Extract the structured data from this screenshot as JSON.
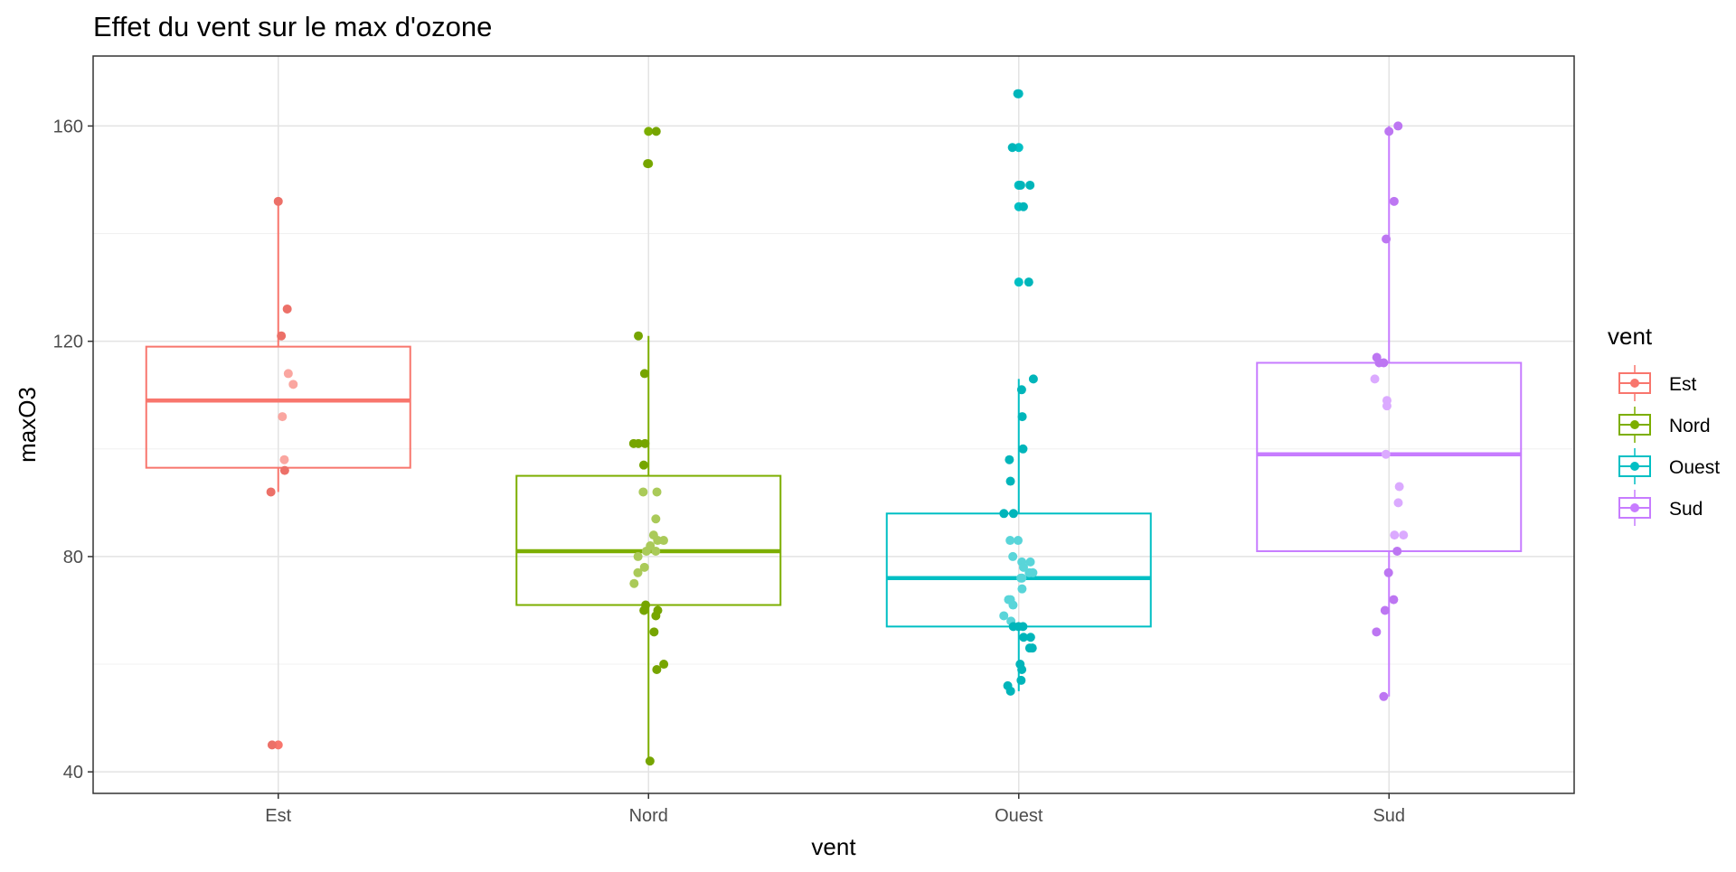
{
  "chart_data": {
    "type": "boxplot",
    "title": "Effet du vent sur le max d'ozone",
    "xlabel": "vent",
    "ylabel": "maxO3",
    "ylim": [
      36,
      173
    ],
    "yticks": [
      40,
      80,
      120,
      160
    ],
    "yminor": [
      60,
      100,
      140
    ],
    "categories": [
      "Est",
      "Nord",
      "Ouest",
      "Sud"
    ],
    "grid": true,
    "legend": {
      "title": "vent",
      "position": "right",
      "entries": [
        "Est",
        "Nord",
        "Ouest",
        "Sud"
      ]
    },
    "series": [
      {
        "name": "Est",
        "color": "#F8766D",
        "whisker_low": 92,
        "q1": 96.5,
        "median": 109,
        "q3": 119,
        "whisker_high": 146,
        "outliers": [
          45
        ],
        "points": [
          146,
          126,
          121,
          114,
          112,
          106,
          98,
          96,
          92,
          45
        ]
      },
      {
        "name": "Nord",
        "color": "#7CAE00",
        "whisker_low": 42,
        "q1": 71,
        "median": 81,
        "q3": 95,
        "whisker_high": 121,
        "outliers": [
          153,
          159
        ],
        "points": [
          159,
          153,
          121,
          114,
          101,
          101,
          101,
          97,
          92,
          92,
          87,
          84,
          83,
          83,
          82,
          81,
          81,
          80,
          78,
          77,
          75,
          71,
          70,
          70,
          70,
          69,
          66,
          60,
          59,
          42
        ]
      },
      {
        "name": "Ouest",
        "color": "#00BFC4",
        "whisker_low": 55,
        "q1": 67,
        "median": 76,
        "q3": 88,
        "whisker_high": 113,
        "outliers": [
          131,
          145,
          149,
          149,
          156,
          166
        ],
        "points": [
          166,
          156,
          149,
          149,
          145,
          131,
          113,
          111,
          106,
          100,
          98,
          94,
          88,
          88,
          83,
          83,
          80,
          79,
          79,
          78,
          77,
          77,
          76,
          76,
          74,
          72,
          72,
          71,
          69,
          68,
          67,
          67,
          67,
          65,
          65,
          63,
          63,
          60,
          59,
          57,
          56,
          55
        ]
      },
      {
        "name": "Sud",
        "color": "#C77CFF",
        "whisker_low": 54,
        "q1": 81,
        "median": 99,
        "q3": 116,
        "whisker_high": 160,
        "outliers": [],
        "points": [
          160,
          159,
          146,
          139,
          117,
          116,
          116,
          113,
          109,
          108,
          99,
          93,
          90,
          84,
          84,
          81,
          77,
          72,
          70,
          66,
          54
        ]
      }
    ]
  }
}
